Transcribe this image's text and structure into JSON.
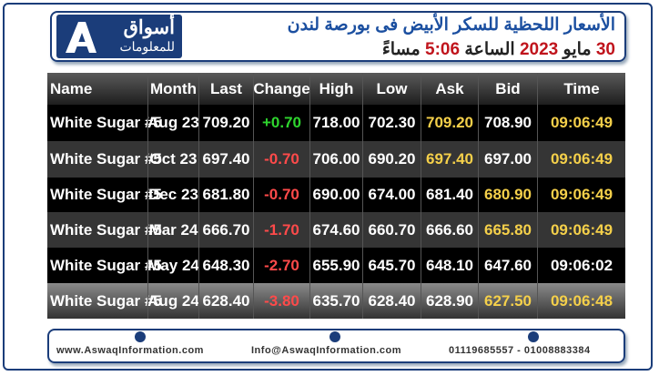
{
  "header": {
    "logo": {
      "name": "أسواق",
      "tagline": "للمعلومات"
    },
    "title": "الأسعار اللحظية للسكر الأبيض فى بورصة لندن",
    "date": {
      "day": "30",
      "month": "مايو",
      "year": "2023",
      "word": "الساعة",
      "time": "5:06",
      "period": "مساءً"
    }
  },
  "table": {
    "columns": [
      "Name",
      "Month",
      "Last",
      "Change",
      "High",
      "Low",
      "Ask",
      "Bid",
      "Time"
    ],
    "rows": [
      [
        "White Sugar #5",
        "Aug 23",
        "709.20",
        "+0.70",
        "718.00",
        "702.30",
        "709.20",
        "708.90",
        "09:06:49"
      ],
      [
        "White Sugar #5",
        "Oct 23",
        "697.40",
        "-0.70",
        "706.00",
        "690.20",
        "697.40",
        "697.00",
        "09:06:49"
      ],
      [
        "White Sugar #5",
        "Dec 23",
        "681.80",
        "-0.70",
        "690.00",
        "674.00",
        "681.40",
        "680.90",
        "09:06:49"
      ],
      [
        "White Sugar #5",
        "Mar 24",
        "666.70",
        "-1.70",
        "674.60",
        "660.70",
        "666.60",
        "665.80",
        "09:06:49"
      ],
      [
        "White Sugar #5",
        "May 24",
        "648.30",
        "-2.70",
        "655.90",
        "645.70",
        "648.10",
        "647.60",
        "09:06:02"
      ],
      [
        "White Sugar #5",
        "Aug 24",
        "628.40",
        "-3.80",
        "635.70",
        "628.40",
        "628.90",
        "627.50",
        "09:06:48"
      ]
    ]
  },
  "footer": {
    "website": "www.AswaqInformation.com",
    "email": "Info@AswaqInformation.com",
    "phones": "01119685557 - 01008883384"
  }
}
